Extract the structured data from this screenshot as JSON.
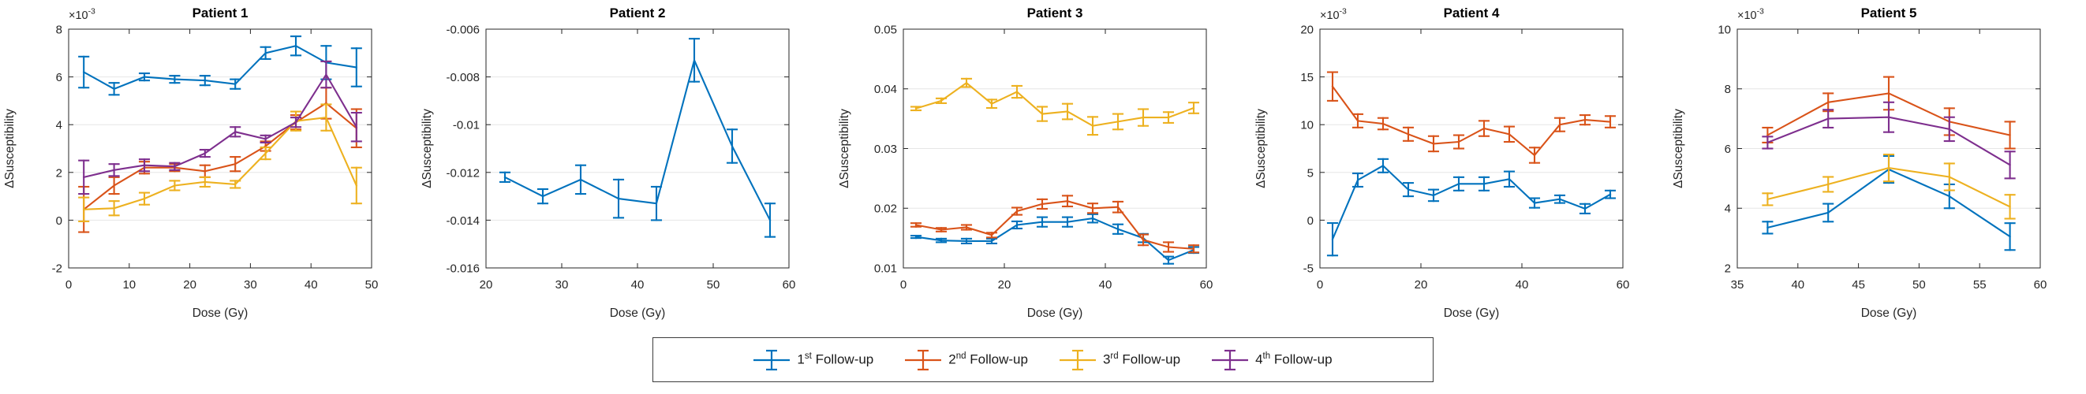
{
  "figure": {
    "ylabel": "ΔSusceptibility",
    "xlabel": "Dose (Gy)",
    "text_color": "#262626",
    "grid_color": "#e6e6e6",
    "axis_color": "#262626"
  },
  "legend": {
    "entries": [
      {
        "series": "1st Follow-up",
        "num": "1",
        "sup": "st",
        "rest": " Follow-up",
        "color": "#0072BD"
      },
      {
        "series": "2nd Follow-up",
        "num": "2",
        "sup": "nd",
        "rest": " Follow-up",
        "color": "#D95319"
      },
      {
        "series": "3rd Follow-up",
        "num": "3",
        "sup": "rd",
        "rest": " Follow-up",
        "color": "#EDB120"
      },
      {
        "series": "4th Follow-up",
        "num": "4",
        "sup": "th",
        "rest": " Follow-up",
        "color": "#7E2F8E"
      }
    ]
  },
  "chart_data": [
    {
      "type": "line",
      "title": "Patient 1",
      "xlabel": "Dose (Gy)",
      "ylabel": "ΔSusceptibility",
      "exponent": {
        "base": "×10",
        "sup": "-3"
      },
      "xlim": [
        0,
        50
      ],
      "ylim": [
        -2,
        8
      ],
      "xticks": [
        {
          "v": 0,
          "label": "0"
        },
        {
          "v": 10,
          "label": "10"
        },
        {
          "v": 20,
          "label": "20"
        },
        {
          "v": 30,
          "label": "30"
        },
        {
          "v": 40,
          "label": "40"
        },
        {
          "v": 50,
          "label": "50"
        }
      ],
      "yticks": [
        {
          "v": -2,
          "label": "-2"
        },
        {
          "v": 0,
          "label": "0"
        },
        {
          "v": 2,
          "label": "2"
        },
        {
          "v": 4,
          "label": "4"
        },
        {
          "v": 6,
          "label": "6"
        },
        {
          "v": 8,
          "label": "8"
        }
      ],
      "x": [
        2.5,
        7.5,
        12.5,
        17.5,
        22.5,
        27.5,
        32.5,
        37.5,
        42.5,
        47.5
      ],
      "series": [
        {
          "name": "1st Follow-up",
          "color": "#0072BD",
          "values": [
            6.2,
            5.5,
            6.0,
            5.9,
            5.85,
            5.7,
            7.0,
            7.3,
            6.6,
            6.4
          ],
          "errors": [
            0.65,
            0.25,
            0.15,
            0.15,
            0.2,
            0.2,
            0.25,
            0.4,
            0.7,
            0.8
          ]
        },
        {
          "name": "2nd Follow-up",
          "color": "#D95319",
          "values": [
            0.45,
            1.45,
            2.2,
            2.2,
            2.05,
            2.35,
            3.1,
            4.1,
            4.9,
            3.85
          ],
          "errors": [
            0.95,
            0.35,
            0.25,
            0.15,
            0.25,
            0.3,
            0.2,
            0.3,
            0.65,
            0.8
          ]
        },
        {
          "name": "3rd Follow-up",
          "color": "#EDB120",
          "values": [
            0.45,
            0.5,
            0.9,
            1.45,
            1.6,
            1.5,
            2.8,
            4.15,
            4.3,
            1.45
          ],
          "errors": [
            0.5,
            0.3,
            0.25,
            0.2,
            0.2,
            0.15,
            0.25,
            0.4,
            0.55,
            0.75
          ]
        },
        {
          "name": "4th Follow-up",
          "color": "#7E2F8E",
          "values": [
            1.8,
            2.1,
            2.3,
            2.25,
            2.8,
            3.7,
            3.4,
            4.1,
            6.1,
            3.9
          ],
          "errors": [
            0.7,
            0.25,
            0.25,
            0.15,
            0.15,
            0.2,
            0.15,
            0.2,
            0.55,
            0.6
          ]
        }
      ]
    },
    {
      "type": "line",
      "title": "Patient 2",
      "xlabel": "Dose (Gy)",
      "ylabel": "ΔSusceptibility",
      "exponent": null,
      "xlim": [
        20,
        60
      ],
      "ylim": [
        -0.016,
        -0.006
      ],
      "xticks": [
        {
          "v": 20,
          "label": "20"
        },
        {
          "v": 30,
          "label": "30"
        },
        {
          "v": 40,
          "label": "40"
        },
        {
          "v": 50,
          "label": "50"
        },
        {
          "v": 60,
          "label": "60"
        }
      ],
      "yticks": [
        {
          "v": -0.016,
          "label": "-0.016"
        },
        {
          "v": -0.014,
          "label": "-0.014"
        },
        {
          "v": -0.012,
          "label": "-0.012"
        },
        {
          "v": -0.01,
          "label": "-0.01"
        },
        {
          "v": -0.008,
          "label": "-0.008"
        },
        {
          "v": -0.006,
          "label": "-0.006"
        }
      ],
      "x": [
        22.5,
        27.5,
        32.5,
        37.5,
        42.5,
        47.5,
        52.5,
        57.5
      ],
      "series": [
        {
          "name": "1st Follow-up",
          "color": "#0072BD",
          "values": [
            -0.0122,
            -0.013,
            -0.0123,
            -0.0131,
            -0.0133,
            -0.0073,
            -0.0109,
            -0.014
          ],
          "errors": [
            0.0002,
            0.0003,
            0.0006,
            0.0008,
            0.0007,
            0.0009,
            0.0007,
            0.0007
          ]
        }
      ]
    },
    {
      "type": "line",
      "title": "Patient 3",
      "xlabel": "Dose (Gy)",
      "ylabel": "ΔSusceptibility",
      "exponent": null,
      "xlim": [
        0,
        60
      ],
      "ylim": [
        0.01,
        0.05
      ],
      "xticks": [
        {
          "v": 0,
          "label": "0"
        },
        {
          "v": 20,
          "label": "20"
        },
        {
          "v": 40,
          "label": "40"
        },
        {
          "v": 60,
          "label": "60"
        }
      ],
      "yticks": [
        {
          "v": 0.01,
          "label": "0.01"
        },
        {
          "v": 0.02,
          "label": "0.02"
        },
        {
          "v": 0.03,
          "label": "0.03"
        },
        {
          "v": 0.04,
          "label": "0.04"
        },
        {
          "v": 0.05,
          "label": "0.05"
        }
      ],
      "x": [
        2.5,
        7.5,
        12.5,
        17.5,
        22.5,
        27.5,
        32.5,
        37.5,
        42.5,
        47.5,
        52.5,
        57.5
      ],
      "series": [
        {
          "name": "1st Follow-up",
          "color": "#0072BD",
          "values": [
            0.0152,
            0.0146,
            0.0145,
            0.0145,
            0.0172,
            0.0177,
            0.0177,
            0.0183,
            0.0165,
            0.015,
            0.0113,
            0.013
          ],
          "errors": [
            0.0002,
            0.0003,
            0.0004,
            0.0004,
            0.0006,
            0.0008,
            0.0008,
            0.0007,
            0.0008,
            0.0007,
            0.0006,
            0.0005
          ]
        },
        {
          "name": "2nd Follow-up",
          "color": "#D95319",
          "values": [
            0.0172,
            0.0164,
            0.0168,
            0.0155,
            0.0195,
            0.0207,
            0.0212,
            0.02,
            0.0202,
            0.0147,
            0.0135,
            0.0132
          ],
          "errors": [
            0.0003,
            0.0003,
            0.0004,
            0.0004,
            0.0006,
            0.0008,
            0.0009,
            0.0008,
            0.0009,
            0.0009,
            0.0008,
            0.0006
          ]
        },
        {
          "name": "3rd Follow-up",
          "color": "#EDB120",
          "values": [
            0.0367,
            0.038,
            0.041,
            0.0375,
            0.0395,
            0.0358,
            0.0362,
            0.0338,
            0.0345,
            0.0352,
            0.0352,
            0.0368
          ],
          "errors": [
            0.0003,
            0.0004,
            0.0007,
            0.0007,
            0.001,
            0.0012,
            0.0013,
            0.0015,
            0.0013,
            0.0014,
            0.0009,
            0.0009
          ]
        }
      ]
    },
    {
      "type": "line",
      "title": "Patient 4",
      "xlabel": "Dose (Gy)",
      "ylabel": "ΔSusceptibility",
      "exponent": {
        "base": "×10",
        "sup": "-3"
      },
      "xlim": [
        0,
        60
      ],
      "ylim": [
        -5,
        20
      ],
      "xticks": [
        {
          "v": 0,
          "label": "0"
        },
        {
          "v": 20,
          "label": "20"
        },
        {
          "v": 40,
          "label": "40"
        },
        {
          "v": 60,
          "label": "60"
        }
      ],
      "yticks": [
        {
          "v": -5,
          "label": "-5"
        },
        {
          "v": 0,
          "label": "0"
        },
        {
          "v": 5,
          "label": "5"
        },
        {
          "v": 10,
          "label": "10"
        },
        {
          "v": 15,
          "label": "15"
        },
        {
          "v": 20,
          "label": "20"
        }
      ],
      "x": [
        2.5,
        7.5,
        12.5,
        17.5,
        22.5,
        27.5,
        32.5,
        37.5,
        42.5,
        47.5,
        52.5,
        57.5
      ],
      "series": [
        {
          "name": "1st Follow-up",
          "color": "#0072BD",
          "values": [
            -2.0,
            4.2,
            5.7,
            3.2,
            2.6,
            3.8,
            3.8,
            4.3,
            1.8,
            2.2,
            1.2,
            2.7
          ],
          "errors": [
            1.7,
            0.7,
            0.7,
            0.7,
            0.6,
            0.7,
            0.7,
            0.8,
            0.5,
            0.4,
            0.5,
            0.4
          ]
        },
        {
          "name": "2nd Follow-up",
          "color": "#D95319",
          "values": [
            14.0,
            10.4,
            10.1,
            9.0,
            8.0,
            8.2,
            9.6,
            9.0,
            6.8,
            10.0,
            10.5,
            10.3
          ],
          "errors": [
            1.5,
            0.7,
            0.6,
            0.7,
            0.8,
            0.7,
            0.8,
            0.8,
            0.8,
            0.7,
            0.5,
            0.6
          ]
        }
      ]
    },
    {
      "type": "line",
      "title": "Patient 5",
      "xlabel": "Dose (Gy)",
      "ylabel": "ΔSusceptibility",
      "exponent": {
        "base": "×10",
        "sup": "-3"
      },
      "xlim": [
        35,
        60
      ],
      "ylim": [
        2,
        10
      ],
      "xticks": [
        {
          "v": 35,
          "label": "35"
        },
        {
          "v": 40,
          "label": "40"
        },
        {
          "v": 45,
          "label": "45"
        },
        {
          "v": 50,
          "label": "50"
        },
        {
          "v": 55,
          "label": "55"
        },
        {
          "v": 60,
          "label": "60"
        }
      ],
      "yticks": [
        {
          "v": 2,
          "label": "2"
        },
        {
          "v": 4,
          "label": "4"
        },
        {
          "v": 6,
          "label": "6"
        },
        {
          "v": 8,
          "label": "8"
        },
        {
          "v": 10,
          "label": "10"
        }
      ],
      "x": [
        37.5,
        42.5,
        47.5,
        52.5,
        57.5
      ],
      "series": [
        {
          "name": "1st Follow-up",
          "color": "#0072BD",
          "values": [
            3.35,
            3.85,
            5.3,
            4.4,
            3.05
          ],
          "errors": [
            0.2,
            0.3,
            0.45,
            0.4,
            0.45
          ]
        },
        {
          "name": "2nd Follow-up",
          "color": "#D95319",
          "values": [
            6.45,
            7.55,
            7.85,
            6.9,
            6.45
          ],
          "errors": [
            0.25,
            0.3,
            0.55,
            0.45,
            0.45
          ]
        },
        {
          "name": "3rd Follow-up",
          "color": "#EDB120",
          "values": [
            4.3,
            4.8,
            5.35,
            5.05,
            4.05
          ],
          "errors": [
            0.2,
            0.25,
            0.45,
            0.45,
            0.4
          ]
        },
        {
          "name": "4th Follow-up",
          "color": "#7E2F8E",
          "values": [
            6.2,
            7.0,
            7.05,
            6.65,
            5.45
          ],
          "errors": [
            0.2,
            0.3,
            0.5,
            0.4,
            0.45
          ]
        }
      ]
    }
  ]
}
